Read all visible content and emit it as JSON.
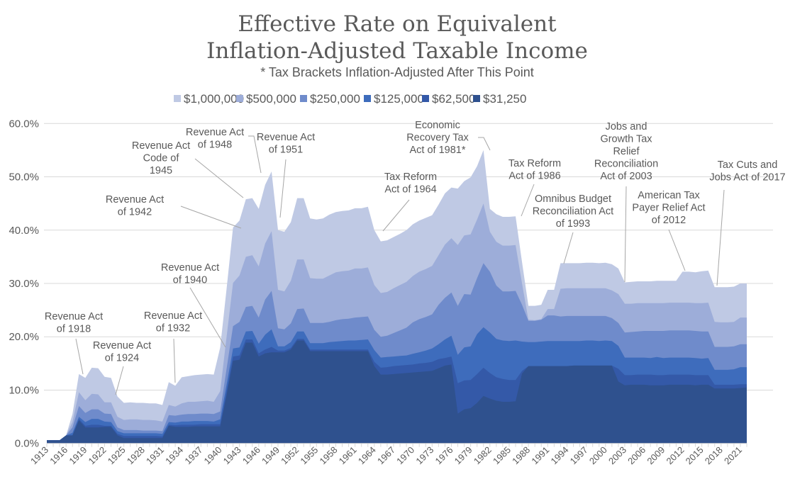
{
  "chart_data": {
    "type": "area",
    "title": [
      "Effective Rate on Equivalent",
      "Inflation-Adjusted Taxable Income"
    ],
    "subtitle": "* Tax Brackets Inflation-Adjusted After This Point",
    "xlabel": "",
    "ylabel": "",
    "ylim": [
      0,
      60
    ],
    "y_ticks": [
      "0.0%",
      "10.0%",
      "20.0%",
      "30.0%",
      "40.0%",
      "50.0%",
      "60.0%"
    ],
    "x_start": 1913,
    "x_end": 2022,
    "x_tick_labels": [
      "1913",
      "1916",
      "1919",
      "1922",
      "1925",
      "1928",
      "1931",
      "1934",
      "1937",
      "1940",
      "1943",
      "1946",
      "1949",
      "1952",
      "1955",
      "1958",
      "1961",
      "1964",
      "1967",
      "1970",
      "1973",
      "1976",
      "1979",
      "1982",
      "1985",
      "1988",
      "1991",
      "1994",
      "1997",
      "2000",
      "2003",
      "2006",
      "2009",
      "2012",
      "2015",
      "2018",
      "2021"
    ],
    "grid": true,
    "legend_position": "top",
    "series": [
      {
        "name": "$1,000,000",
        "color": "#bfc9e4",
        "values": [
          0.6,
          0.6,
          0.6,
          1.5,
          5.5,
          13.0,
          12.3,
          14.2,
          14.1,
          12.5,
          12.3,
          8.8,
          7.6,
          7.7,
          7.6,
          7.6,
          7.5,
          7.5,
          7.2,
          11.5,
          10.8,
          12.4,
          12.6,
          12.8,
          12.9,
          13.0,
          12.9,
          18.0,
          29.0,
          40.5,
          41.8,
          45.8,
          46.0,
          44.0,
          48.5,
          51.0,
          40.0,
          39.7,
          41.5,
          46.0,
          46.0,
          42.2,
          42.0,
          42.2,
          42.9,
          43.4,
          43.6,
          43.7,
          44.1,
          44.1,
          44.4,
          40.0,
          37.9,
          38.1,
          38.7,
          39.3,
          40.0,
          41.1,
          41.8,
          42.3,
          42.8,
          44.8,
          46.9,
          48.0,
          47.8,
          49.2,
          49.9,
          52.0,
          55.0,
          44.0,
          43.0,
          42.5,
          42.5,
          42.6,
          34.0,
          25.8,
          25.8,
          26.0,
          28.8,
          28.8,
          33.8,
          33.8,
          33.8,
          33.8,
          33.9,
          33.9,
          33.8,
          33.9,
          33.6,
          32.8,
          30.2,
          30.3,
          30.4,
          30.4,
          30.4,
          30.5,
          30.5,
          30.5,
          30.5,
          32.2,
          32.2,
          32.1,
          32.3,
          32.4,
          29.3,
          29.3,
          29.3,
          29.4,
          30.0,
          30.0
        ]
      },
      {
        "name": "$500,000",
        "color": "#9dadd9",
        "values": [
          0.6,
          0.6,
          0.6,
          1.5,
          4.0,
          9.6,
          8.1,
          9.3,
          9.2,
          7.7,
          7.7,
          5.0,
          4.4,
          4.5,
          4.5,
          4.4,
          4.4,
          4.3,
          4.1,
          7.2,
          6.9,
          7.5,
          7.8,
          7.8,
          7.9,
          8.0,
          7.8,
          9.8,
          20.0,
          30.1,
          31.5,
          35.0,
          35.3,
          33.2,
          37.5,
          39.8,
          28.8,
          28.5,
          30.5,
          34.5,
          34.5,
          31.0,
          30.9,
          30.9,
          31.5,
          32.1,
          32.3,
          32.4,
          32.8,
          32.8,
          33.0,
          29.7,
          28.2,
          28.4,
          29.1,
          29.7,
          30.3,
          31.4,
          32.2,
          32.7,
          33.3,
          35.3,
          37.3,
          38.5,
          37.2,
          39.0,
          39.2,
          42.0,
          45.0,
          39.7,
          37.8,
          37.1,
          37.1,
          37.2,
          30.0,
          23.2,
          23.1,
          23.3,
          25.2,
          25.2,
          29.0,
          29.1,
          29.1,
          29.1,
          29.1,
          29.1,
          29.1,
          29.1,
          28.7,
          28.0,
          26.2,
          26.2,
          26.3,
          26.3,
          26.3,
          26.3,
          26.3,
          26.4,
          26.4,
          26.4,
          26.4,
          26.3,
          26.3,
          26.4,
          22.8,
          22.7,
          22.7,
          22.8,
          23.6,
          23.6
        ]
      },
      {
        "name": "$250,000",
        "color": "#6f8bcb",
        "values": [
          0.6,
          0.6,
          0.6,
          1.5,
          3.0,
          7.0,
          5.7,
          6.4,
          6.4,
          5.6,
          5.5,
          3.0,
          2.5,
          2.5,
          2.5,
          2.4,
          2.4,
          2.4,
          2.3,
          5.3,
          5.2,
          5.4,
          5.5,
          5.5,
          5.6,
          5.6,
          5.5,
          6.0,
          14.0,
          22.0,
          22.8,
          25.6,
          25.8,
          23.6,
          27.0,
          28.6,
          21.6,
          21.4,
          22.5,
          25.2,
          25.3,
          22.6,
          22.6,
          22.6,
          22.8,
          23.1,
          23.3,
          23.4,
          23.6,
          23.7,
          23.8,
          21.3,
          20.0,
          20.2,
          20.7,
          21.2,
          21.7,
          22.7,
          23.3,
          23.7,
          24.2,
          26.0,
          27.3,
          28.3,
          25.8,
          28.0,
          27.9,
          31.0,
          33.8,
          32.2,
          29.6,
          28.5,
          28.5,
          28.6,
          26.0,
          23.0,
          23.0,
          23.2,
          24.0,
          24.0,
          23.8,
          23.9,
          23.9,
          23.9,
          23.9,
          23.9,
          23.9,
          23.9,
          23.5,
          22.6,
          20.8,
          20.9,
          21.0,
          21.1,
          21.1,
          21.1,
          21.1,
          21.2,
          21.2,
          21.2,
          21.2,
          21.1,
          21.0,
          21.0,
          18.1,
          18.1,
          18.1,
          18.2,
          18.6,
          18.6
        ]
      },
      {
        "name": "$125,000",
        "color": "#3e6cbc",
        "values": [
          0.6,
          0.6,
          0.6,
          1.5,
          2.0,
          5.0,
          4.0,
          4.6,
          4.6,
          4.1,
          4.0,
          2.3,
          1.9,
          1.9,
          1.9,
          1.9,
          1.9,
          1.9,
          1.8,
          4.0,
          3.9,
          4.1,
          4.1,
          4.2,
          4.2,
          4.2,
          4.1,
          4.5,
          11.0,
          17.8,
          18.0,
          21.0,
          21.1,
          18.7,
          20.4,
          21.4,
          18.2,
          18.2,
          19.0,
          21.0,
          21.0,
          18.8,
          18.8,
          18.8,
          19.0,
          19.1,
          19.2,
          19.3,
          19.3,
          19.4,
          19.5,
          17.5,
          16.1,
          16.2,
          16.3,
          16.4,
          16.5,
          16.8,
          17.1,
          17.4,
          17.8,
          18.6,
          19.5,
          20.2,
          16.6,
          18.0,
          18.2,
          20.5,
          21.8,
          20.8,
          19.6,
          19.3,
          19.2,
          19.3,
          19.1,
          19.0,
          19.0,
          19.1,
          19.2,
          19.2,
          19.2,
          19.2,
          19.2,
          19.2,
          19.3,
          19.3,
          19.2,
          19.3,
          19.2,
          18.3,
          16.1,
          16.1,
          16.1,
          16.1,
          16.0,
          16.2,
          16.0,
          16.1,
          16.1,
          16.1,
          16.1,
          16.0,
          15.9,
          16.0,
          13.8,
          13.8,
          13.8,
          13.9,
          14.3,
          14.3
        ]
      },
      {
        "name": "$62,500",
        "color": "#3459a8",
        "values": [
          0.6,
          0.6,
          0.6,
          1.5,
          1.5,
          4.6,
          3.3,
          3.5,
          3.5,
          3.3,
          3.3,
          1.8,
          1.4,
          1.4,
          1.4,
          1.4,
          1.4,
          1.4,
          1.3,
          3.5,
          3.4,
          3.5,
          3.5,
          3.5,
          3.6,
          3.6,
          3.6,
          3.6,
          9.8,
          16.3,
          16.5,
          19.5,
          19.5,
          16.9,
          17.6,
          18.1,
          17.4,
          17.4,
          17.9,
          19.6,
          19.6,
          17.6,
          17.6,
          17.6,
          17.6,
          17.6,
          17.6,
          17.6,
          17.6,
          17.6,
          17.6,
          15.3,
          14.2,
          14.3,
          14.5,
          14.6,
          14.7,
          14.8,
          15.0,
          15.1,
          15.3,
          15.8,
          16.0,
          16.3,
          11.3,
          11.8,
          11.9,
          13.0,
          14.2,
          13.2,
          12.4,
          12.1,
          11.9,
          11.9,
          13.6,
          14.5,
          14.5,
          14.5,
          14.5,
          14.5,
          14.5,
          14.5,
          14.6,
          14.6,
          14.6,
          14.6,
          14.6,
          14.6,
          14.6,
          14.0,
          12.8,
          12.8,
          12.9,
          12.9,
          12.9,
          12.8,
          12.8,
          12.9,
          12.9,
          12.9,
          12.9,
          12.8,
          12.8,
          12.8,
          11.0,
          11.0,
          11.0,
          11.0,
          11.1,
          11.1
        ]
      },
      {
        "name": "$31,250",
        "color": "#2f518e",
        "values": [
          0.6,
          0.6,
          0.6,
          1.5,
          1.5,
          4.3,
          3.0,
          3.0,
          3.0,
          3.1,
          3.1,
          1.5,
          1.0,
          1.0,
          1.0,
          1.0,
          1.0,
          1.0,
          1.0,
          3.3,
          3.1,
          3.1,
          3.1,
          3.2,
          3.2,
          3.2,
          3.2,
          3.2,
          9.0,
          15.5,
          15.7,
          18.9,
          18.9,
          16.3,
          16.9,
          17.1,
          17.1,
          17.1,
          17.6,
          19.3,
          19.3,
          17.3,
          17.3,
          17.3,
          17.3,
          17.3,
          17.3,
          17.3,
          17.3,
          17.3,
          17.3,
          14.5,
          12.9,
          12.9,
          13.0,
          13.1,
          13.2,
          13.3,
          13.4,
          13.5,
          13.6,
          14.1,
          14.6,
          14.8,
          5.6,
          6.4,
          6.6,
          7.6,
          8.9,
          8.4,
          8.0,
          7.8,
          7.8,
          7.9,
          13.1,
          14.5,
          14.5,
          14.5,
          14.5,
          14.5,
          14.5,
          14.5,
          14.6,
          14.6,
          14.6,
          14.6,
          14.6,
          14.6,
          14.6,
          11.6,
          10.9,
          11.0,
          11.0,
          11.0,
          10.9,
          10.9,
          10.9,
          11.0,
          11.0,
          11.0,
          11.0,
          10.9,
          11.0,
          11.0,
          10.3,
          10.3,
          10.3,
          10.3,
          10.4,
          10.5
        ]
      }
    ],
    "annotations": [
      {
        "lines": [
          "Revenue Act",
          "of 1918"
        ]
      },
      {
        "lines": [
          "Revenue Act",
          "of 1924"
        ]
      },
      {
        "lines": [
          "Revenue Act",
          "of 1932"
        ]
      },
      {
        "lines": [
          "Revenue Act",
          "of 1940"
        ]
      },
      {
        "lines": [
          "Revenue Act",
          "of 1942"
        ]
      },
      {
        "lines": [
          "Revenue Act",
          "Code of",
          "1945"
        ]
      },
      {
        "lines": [
          "Revenue Act",
          "of 1948"
        ]
      },
      {
        "lines": [
          "Revenue Act",
          "of 1951"
        ]
      },
      {
        "lines": [
          "Tax Reform",
          "Act of 1964"
        ]
      },
      {
        "lines": [
          "Economic",
          "Recovery Tax",
          "Act of 1981*"
        ]
      },
      {
        "lines": [
          "Tax Reform",
          "Act of 1986"
        ]
      },
      {
        "lines": [
          "Omnibus Budget",
          "Reconciliation Act",
          "of 1993"
        ]
      },
      {
        "lines": [
          "Jobs and",
          "Growth Tax",
          "Relief",
          "Reconciliation",
          "Act of 2003"
        ]
      },
      {
        "lines": [
          "American Tax",
          "Payer Relief Act",
          "of 2012"
        ]
      },
      {
        "lines": [
          "Tax Cuts and",
          "Jobs Act of 2017"
        ]
      }
    ]
  }
}
